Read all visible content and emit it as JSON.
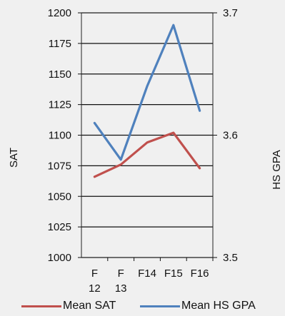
{
  "chart_data": {
    "type": "line",
    "categories": [
      [
        "F",
        "12"
      ],
      [
        "F",
        "13"
      ],
      [
        "F14"
      ],
      [
        "F15"
      ],
      [
        "F16"
      ]
    ],
    "y_left": {
      "label": "SAT",
      "min": 1000,
      "max": 1200,
      "ticks": [
        1000,
        1025,
        1050,
        1075,
        1100,
        1125,
        1150,
        1175,
        1200
      ]
    },
    "y_right": {
      "label": "HS GPA",
      "min": 3.5,
      "max": 3.7,
      "ticks": [
        3.5,
        3.6,
        3.7
      ]
    },
    "grid": true,
    "legend_position": "bottom",
    "series": [
      {
        "name": "Mean SAT",
        "axis": "left",
        "color": "#c0504d",
        "values": [
          1066,
          1076,
          1094,
          1102,
          1073
        ]
      },
      {
        "name": "Mean HS GPA",
        "axis": "right",
        "color": "#4f81bd",
        "values": [
          3.61,
          3.58,
          3.64,
          3.69,
          3.62
        ]
      }
    ]
  },
  "legend": {
    "sat_label": "Mean SAT",
    "gpa_label": "Mean HS GPA",
    "sat_color": "#c0504d",
    "gpa_color": "#4f81bd"
  }
}
